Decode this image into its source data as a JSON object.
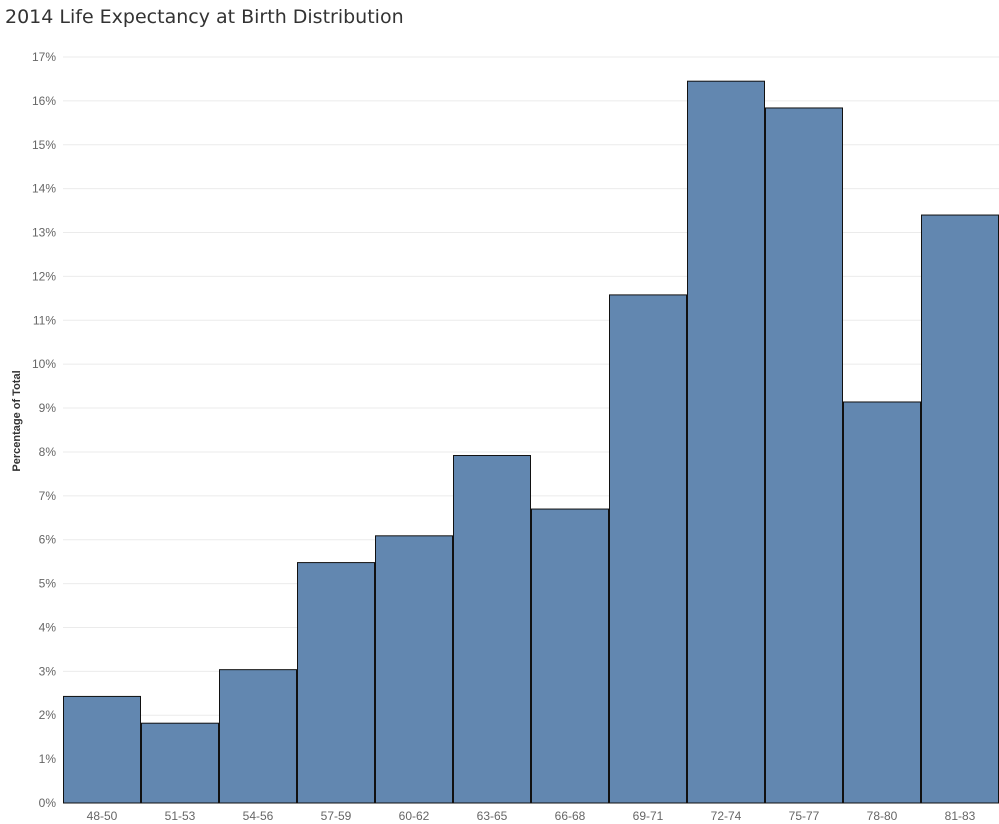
{
  "chart_data": {
    "type": "bar",
    "title": "2014 Life Expectancy at Birth Distribution",
    "xlabel": "",
    "ylabel": "Percentage of Total",
    "categories": [
      "48-50",
      "51-53",
      "54-56",
      "57-59",
      "60-62",
      "63-65",
      "66-68",
      "69-71",
      "72-74",
      "75-77",
      "78-80",
      "81-83"
    ],
    "values": [
      2.44,
      1.83,
      3.05,
      5.49,
      6.1,
      7.93,
      6.71,
      11.59,
      16.46,
      15.85,
      9.15,
      13.41
    ],
    "value_unit": "%",
    "ylim": [
      0,
      17
    ],
    "yticks": [
      "0%",
      "1%",
      "2%",
      "3%",
      "4%",
      "5%",
      "6%",
      "7%",
      "8%",
      "9%",
      "10%",
      "11%",
      "12%",
      "13%",
      "14%",
      "15%",
      "16%",
      "17%"
    ],
    "grid": true,
    "colors": {
      "bar": "#6287b0",
      "bar_border": "#111111",
      "grid": "#ebebeb"
    }
  }
}
